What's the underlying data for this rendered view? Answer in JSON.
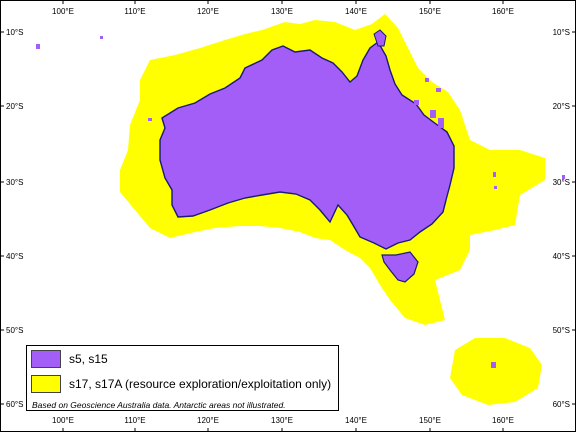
{
  "colors": {
    "s5_s15": "#a35ef7",
    "s17_s17a": "#ffff00",
    "coastline": "#1a1a7a",
    "frame": "#000000"
  },
  "axes": {
    "top_longitudes": [
      "100°E",
      "110°E",
      "120°E",
      "130°E",
      "140°E",
      "150°E",
      "160°E"
    ],
    "bottom_longitudes": [
      "100°E",
      "110°E",
      "120°E",
      "130°E",
      "140°E",
      "150°E",
      "160°E"
    ],
    "left_latitudes": [
      "10°S",
      "20°S",
      "30°S",
      "40°S",
      "50°S",
      "60°S"
    ],
    "right_latitudes": [
      "10°S",
      "20°S",
      "30°S",
      "40°S",
      "50°S",
      "60°S"
    ]
  },
  "legend": {
    "items": [
      {
        "label": "s5, s15",
        "color_key": "s5_s15"
      },
      {
        "label": "s17, s17A (resource exploration/exploitation only)",
        "color_key": "s17_s17a"
      }
    ],
    "note": "Based on Geoscience Australia data.  Antarctic areas not illustrated."
  }
}
